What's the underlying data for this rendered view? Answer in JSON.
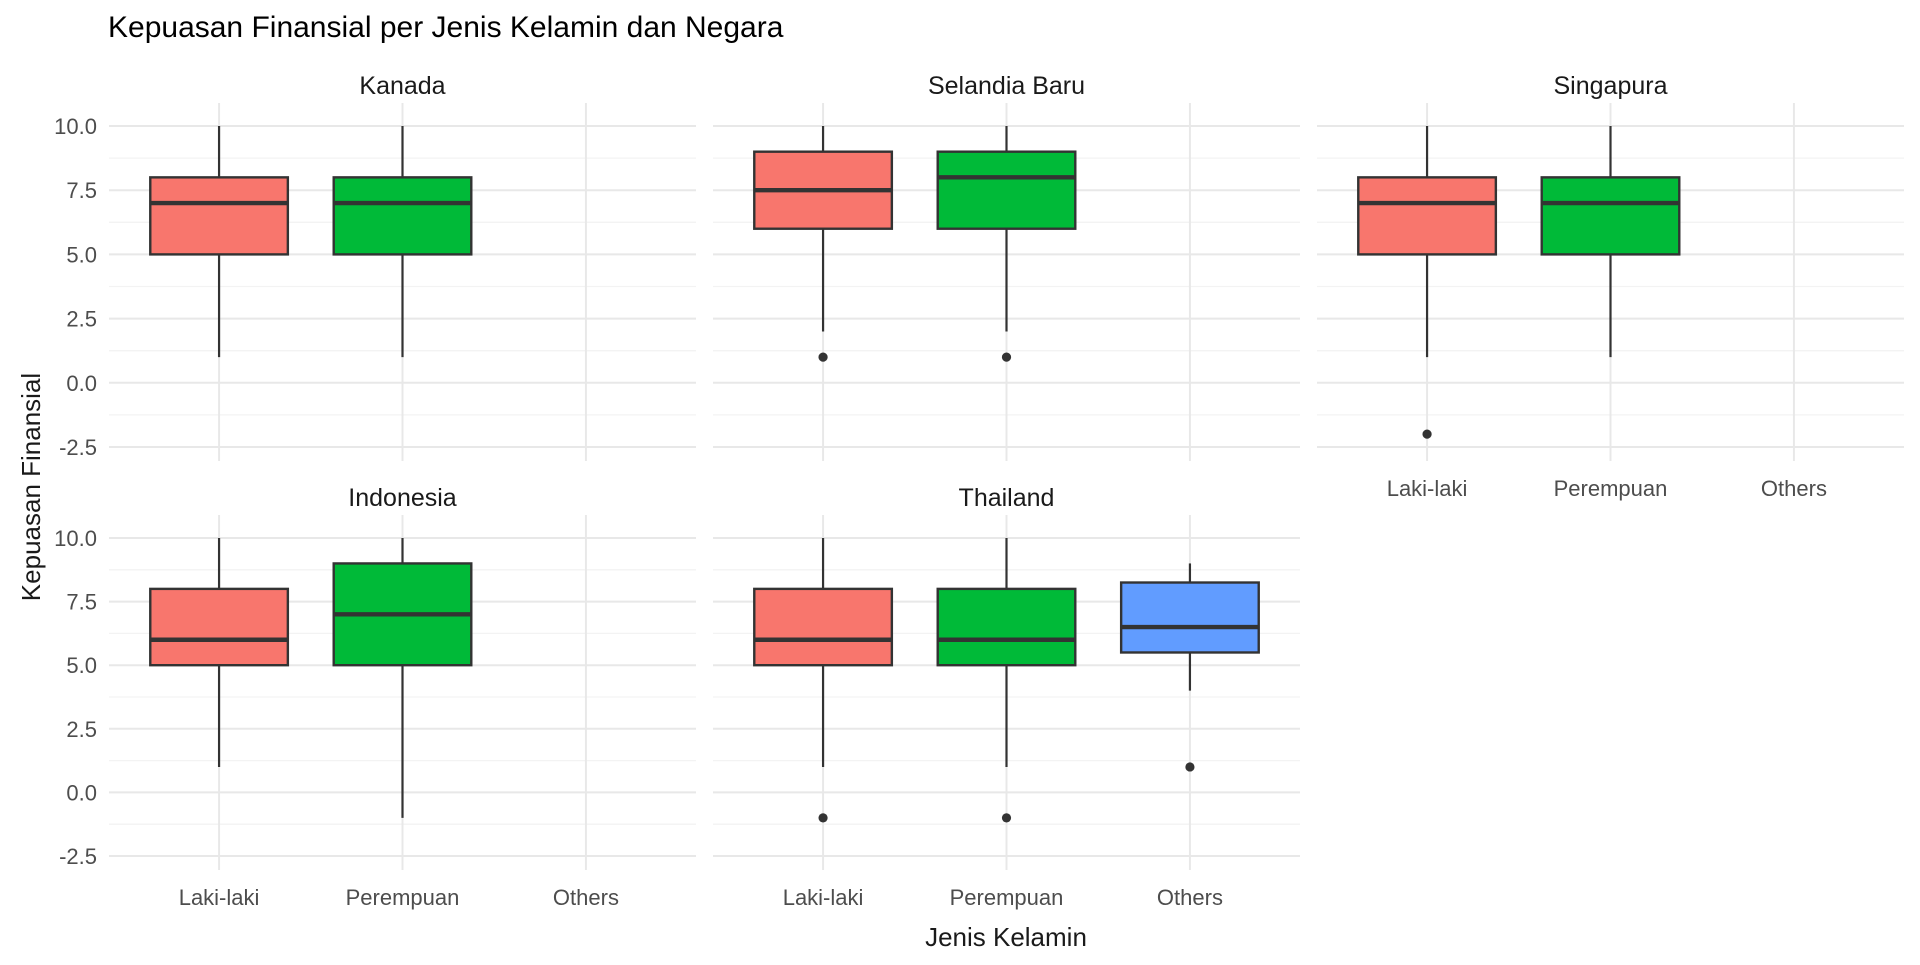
{
  "chart_data": {
    "type": "boxplot",
    "title": "Kepuasan Finansial per Jenis Kelamin dan Negara",
    "xlabel": "Jenis Kelamin",
    "ylabel": "Kepuasan Finansial",
    "legend": "none",
    "grid": "on",
    "categories": [
      "Laki-laki",
      "Perempuan",
      "Others"
    ],
    "palette": [
      "#F8766D",
      "#00BA38",
      "#619CFF"
    ],
    "box_border_color": "#333333",
    "grid_major_color": "#E8E8E8",
    "grid_minor_color": "#F3F3F3",
    "axis_text_color": "#4d4d4d",
    "y_ticks": [
      10.0,
      7.5,
      5.0,
      2.5,
      0.0,
      -2.5
    ],
    "y_tick_labels": [
      "10.0",
      "7.5",
      "5.0",
      "2.5",
      "0.0",
      "-2.5"
    ],
    "ylim": [
      -3.05,
      10.9
    ],
    "facet_layout": {
      "rows": 2,
      "cols": 3
    },
    "facets": [
      {
        "name": "Kanada",
        "row": 0,
        "col": 0,
        "boxes": [
          {
            "category": "Laki-laki",
            "min": 1,
            "q1": 5,
            "median": 7,
            "q3": 8,
            "max": 10,
            "outliers": []
          },
          {
            "category": "Perempuan",
            "min": 1,
            "q1": 5,
            "median": 7,
            "q3": 8,
            "max": 10,
            "outliers": []
          }
        ]
      },
      {
        "name": "Selandia Baru",
        "row": 0,
        "col": 1,
        "boxes": [
          {
            "category": "Laki-laki",
            "min": 2,
            "q1": 6,
            "median": 7.5,
            "q3": 9,
            "max": 10,
            "outliers": [
              1
            ]
          },
          {
            "category": "Perempuan",
            "min": 2,
            "q1": 6,
            "median": 8,
            "q3": 9,
            "max": 10,
            "outliers": [
              1
            ]
          }
        ]
      },
      {
        "name": "Singapura",
        "row": 0,
        "col": 2,
        "boxes": [
          {
            "category": "Laki-laki",
            "min": 1,
            "q1": 5,
            "median": 7,
            "q3": 8,
            "max": 10,
            "outliers": [
              -2
            ]
          },
          {
            "category": "Perempuan",
            "min": 1,
            "q1": 5,
            "median": 7,
            "q3": 8,
            "max": 10,
            "outliers": []
          }
        ]
      },
      {
        "name": "Indonesia",
        "row": 1,
        "col": 0,
        "boxes": [
          {
            "category": "Laki-laki",
            "min": 1,
            "q1": 5,
            "median": 6,
            "q3": 8,
            "max": 10,
            "outliers": []
          },
          {
            "category": "Perempuan",
            "min": -1,
            "q1": 5,
            "median": 7,
            "q3": 9,
            "max": 10,
            "outliers": []
          }
        ]
      },
      {
        "name": "Thailand",
        "row": 1,
        "col": 1,
        "boxes": [
          {
            "category": "Laki-laki",
            "min": 1,
            "q1": 5,
            "median": 6,
            "q3": 8,
            "max": 10,
            "outliers": [
              -1
            ]
          },
          {
            "category": "Perempuan",
            "min": 1,
            "q1": 5,
            "median": 6,
            "q3": 8,
            "max": 10,
            "outliers": [
              -1
            ]
          },
          {
            "category": "Others",
            "min": 4,
            "q1": 5.5,
            "median": 6.5,
            "q3": 8.25,
            "max": 9,
            "outliers": [
              1
            ]
          }
        ]
      }
    ]
  }
}
